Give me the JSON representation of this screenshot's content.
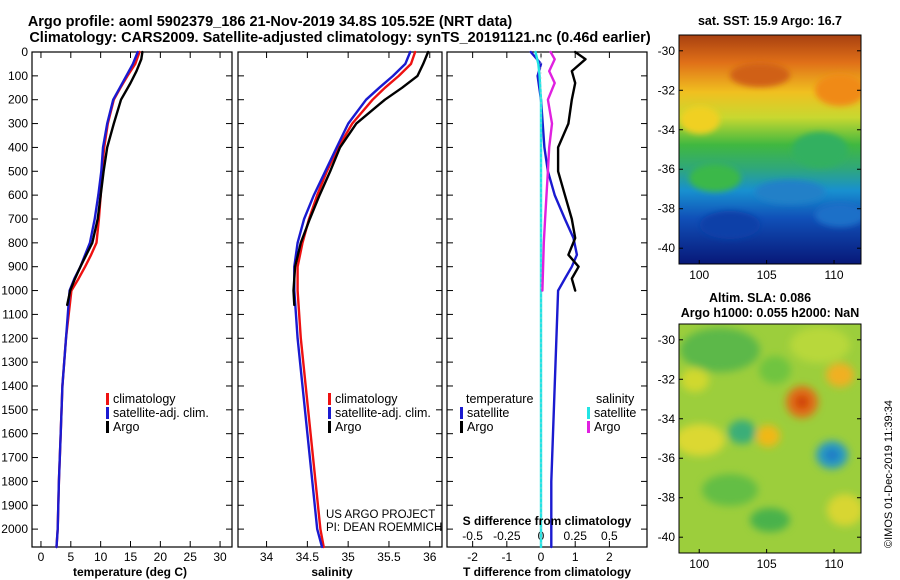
{
  "header": {
    "line1": "Argo profile: aoml 5902379_186 21-Nov-2019 34.8S 105.52E (NRT data)",
    "line2": "Climatology: CARS2009. Satellite-adjusted climatology: synTS_20191121.nc (0.46d earlier)"
  },
  "colors": {
    "climatology": "#ee1111",
    "satellite": "#1a1ad0",
    "argo": "#000000",
    "satellite_salinity": "#22e4e4",
    "argo_salinity": "#e020e0"
  },
  "depth_axis": {
    "range": [
      0,
      2075
    ],
    "ticks": [
      "0",
      "100",
      "200",
      "300",
      "400",
      "500",
      "600",
      "700",
      "800",
      "900",
      "1000",
      "1100",
      "1200",
      "1300",
      "1400",
      "1500",
      "1600",
      "1700",
      "1800",
      "1900",
      "2000"
    ]
  },
  "chart_data": [
    {
      "type": "line",
      "id": "temperature",
      "xlabel": "temperature (deg C)",
      "xlim": [
        -1.5,
        32
      ],
      "ylim": [
        2075,
        0
      ],
      "xticks": [
        "0",
        "5",
        "10",
        "15",
        "20",
        "25",
        "30"
      ],
      "legend": [
        "climatology",
        "satellite-adj. clim.",
        "Argo"
      ],
      "series": [
        {
          "name": "climatology",
          "color": "#ee1111",
          "x": [
            16.5,
            15.8,
            14.5,
            13.3,
            12.2,
            11.2,
            10.6,
            10.2,
            10.0,
            9.7,
            9.3,
            8.4,
            7.4,
            6.3,
            5.1,
            4.2,
            3.6,
            3.3,
            3.0,
            2.8,
            2.6
          ],
          "y": [
            0,
            50,
            100,
            150,
            200,
            300,
            400,
            500,
            600,
            700,
            800,
            850,
            900,
            950,
            1000,
            1200,
            1400,
            1600,
            1800,
            2000,
            2075
          ]
        },
        {
          "name": "satellite-adj. clim.",
          "color": "#1a1ad0",
          "x": [
            16.2,
            15.4,
            14.3,
            13.2,
            12.1,
            11.1,
            10.4,
            10.1,
            9.6,
            9.0,
            8.2,
            7.4,
            6.6,
            5.6,
            4.8,
            4.2,
            3.6,
            3.3,
            3.0,
            2.8,
            2.6
          ],
          "y": [
            0,
            50,
            100,
            150,
            200,
            300,
            400,
            500,
            600,
            700,
            800,
            850,
            900,
            950,
            1000,
            1200,
            1400,
            1600,
            1800,
            2000,
            2075
          ]
        },
        {
          "name": "Argo",
          "color": "#000000",
          "x": [
            17.0,
            16.8,
            16.0,
            15.0,
            13.4,
            12.2,
            11.1,
            10.5,
            10.0,
            9.5,
            8.6,
            7.6,
            6.6,
            5.7,
            4.9,
            4.4
          ],
          "y": [
            0,
            30,
            80,
            130,
            200,
            300,
            400,
            500,
            600,
            700,
            800,
            850,
            900,
            950,
            1000,
            1060
          ]
        }
      ]
    },
    {
      "type": "line",
      "id": "salinity",
      "xlabel": "salinity",
      "xlim": [
        33.65,
        36.15
      ],
      "ylim": [
        2075,
        0
      ],
      "xticks": [
        "34",
        "34.5",
        "35",
        "35.5",
        "36"
      ],
      "legend": [
        "climatology",
        "satellite-adj. clim.",
        "Argo"
      ],
      "annotations": [
        "US ARGO PROJECT",
        "PI: DEAN ROEMMICH"
      ],
      "series": [
        {
          "name": "climatology",
          "color": "#ee1111",
          "x": [
            35.82,
            35.77,
            35.62,
            35.45,
            35.3,
            35.05,
            34.88,
            34.74,
            34.62,
            34.52,
            34.44,
            34.38,
            34.38,
            34.42,
            34.48,
            34.54,
            34.6,
            34.66,
            34.7
          ],
          "y": [
            0,
            50,
            100,
            150,
            200,
            300,
            400,
            500,
            600,
            700,
            800,
            900,
            1000,
            1200,
            1400,
            1600,
            1800,
            2000,
            2075
          ]
        },
        {
          "name": "satellite-adj. clim.",
          "color": "#1a1ad0",
          "x": [
            35.76,
            35.7,
            35.55,
            35.38,
            35.22,
            35.0,
            34.86,
            34.72,
            34.58,
            34.46,
            34.38,
            34.34,
            34.34,
            34.38,
            34.44,
            34.5,
            34.56,
            34.62,
            34.68
          ],
          "y": [
            0,
            50,
            100,
            150,
            200,
            300,
            400,
            500,
            600,
            700,
            800,
            900,
            1000,
            1200,
            1400,
            1600,
            1800,
            2000,
            2075
          ]
        },
        {
          "name": "Argo",
          "color": "#000000",
          "x": [
            35.98,
            35.92,
            35.85,
            35.66,
            35.45,
            35.1,
            34.9,
            34.78,
            34.65,
            34.53,
            34.42,
            34.35,
            34.33,
            34.34
          ],
          "y": [
            0,
            50,
            100,
            150,
            200,
            300,
            400,
            500,
            600,
            700,
            800,
            900,
            1000,
            1060
          ]
        }
      ]
    },
    {
      "type": "line",
      "id": "difference",
      "xlabel": "T difference from climatology",
      "xlabel_top": "S difference from climatology",
      "xlim": [
        -2.75,
        3.1
      ],
      "s_xlim": [
        -0.6875,
        0.775
      ],
      "ylim": [
        2075,
        0
      ],
      "xticks": [
        "-2",
        "-1",
        "0",
        "1",
        "2"
      ],
      "s_xticks": [
        "-0.5",
        "-0.25",
        "0",
        "0.25",
        "0.5"
      ],
      "legend_temperature": {
        "title": "temperature",
        "items": [
          "satellite",
          "Argo"
        ]
      },
      "legend_salinity": {
        "title": "salinity",
        "items": [
          "satellite",
          "Argo"
        ]
      },
      "series": [
        {
          "name": "T satellite",
          "color": "#1a1ad0",
          "x": [
            -0.3,
            0.0,
            -0.1,
            0.0,
            0.05,
            0.1,
            0.2,
            0.4,
            0.7,
            0.95,
            1.05,
            0.9,
            0.7,
            0.5,
            0.45,
            0.4,
            0.35,
            0.3,
            0.3,
            0.3,
            0.3
          ],
          "y": [
            0,
            50,
            100,
            200,
            300,
            400,
            500,
            600,
            700,
            780,
            850,
            900,
            950,
            1000,
            1200,
            1400,
            1600,
            1800,
            1900,
            2000,
            2075
          ]
        },
        {
          "name": "T Argo",
          "color": "#000000",
          "x": [
            1.0,
            1.3,
            0.9,
            1.0,
            0.9,
            0.8,
            0.5,
            0.5,
            0.7,
            0.9,
            1.0,
            0.8,
            1.1,
            0.9,
            1.0
          ],
          "y": [
            0,
            30,
            80,
            130,
            200,
            300,
            400,
            500,
            600,
            700,
            780,
            850,
            900,
            950,
            1000
          ]
        },
        {
          "name": "S satellite",
          "color": "#22e4e4",
          "x": [
            -0.04,
            -0.02,
            -0.01,
            0.0,
            0.0,
            0.0,
            0.0,
            0.0,
            0.0,
            0.0,
            0.0,
            0.0,
            0.0,
            0.0,
            0.0
          ],
          "y": [
            0,
            50,
            100,
            200,
            400,
            600,
            800,
            1000,
            1200,
            1400,
            1600,
            1800,
            1900,
            2000,
            2075
          ]
        },
        {
          "name": "S Argo",
          "color": "#e020e0",
          "x": [
            0.07,
            0.1,
            0.06,
            0.1,
            0.05,
            0.08,
            0.06,
            0.05,
            0.04,
            0.03,
            0.02,
            0.01
          ],
          "y": [
            0,
            30,
            80,
            130,
            200,
            300,
            400,
            500,
            600,
            700,
            800,
            1000
          ]
        }
      ]
    },
    {
      "type": "heatmap",
      "id": "sst_map",
      "title": "sat. SST: 15.9 Argo: 16.7",
      "xticks": [
        "100",
        "105",
        "110"
      ],
      "yticks": [
        "-30",
        "-32",
        "-34",
        "-36",
        "-38",
        "-40"
      ],
      "xlim": [
        98.5,
        112
      ],
      "ylim": [
        -40.8,
        -29.2
      ]
    },
    {
      "type": "heatmap",
      "id": "sla_map",
      "title_line1": "Altim. SLA: 0.086",
      "title_line2": "Argo h1000: 0.055 h2000: NaN",
      "xticks": [
        "100",
        "105",
        "110"
      ],
      "yticks": [
        "-30",
        "-32",
        "-34",
        "-36",
        "-38",
        "-40"
      ],
      "xlim": [
        98.5,
        112
      ],
      "ylim": [
        -40.8,
        -29.2
      ]
    }
  ],
  "footer": {
    "watermark": "©IMOS 01-Dec-2019 11:39:34"
  }
}
